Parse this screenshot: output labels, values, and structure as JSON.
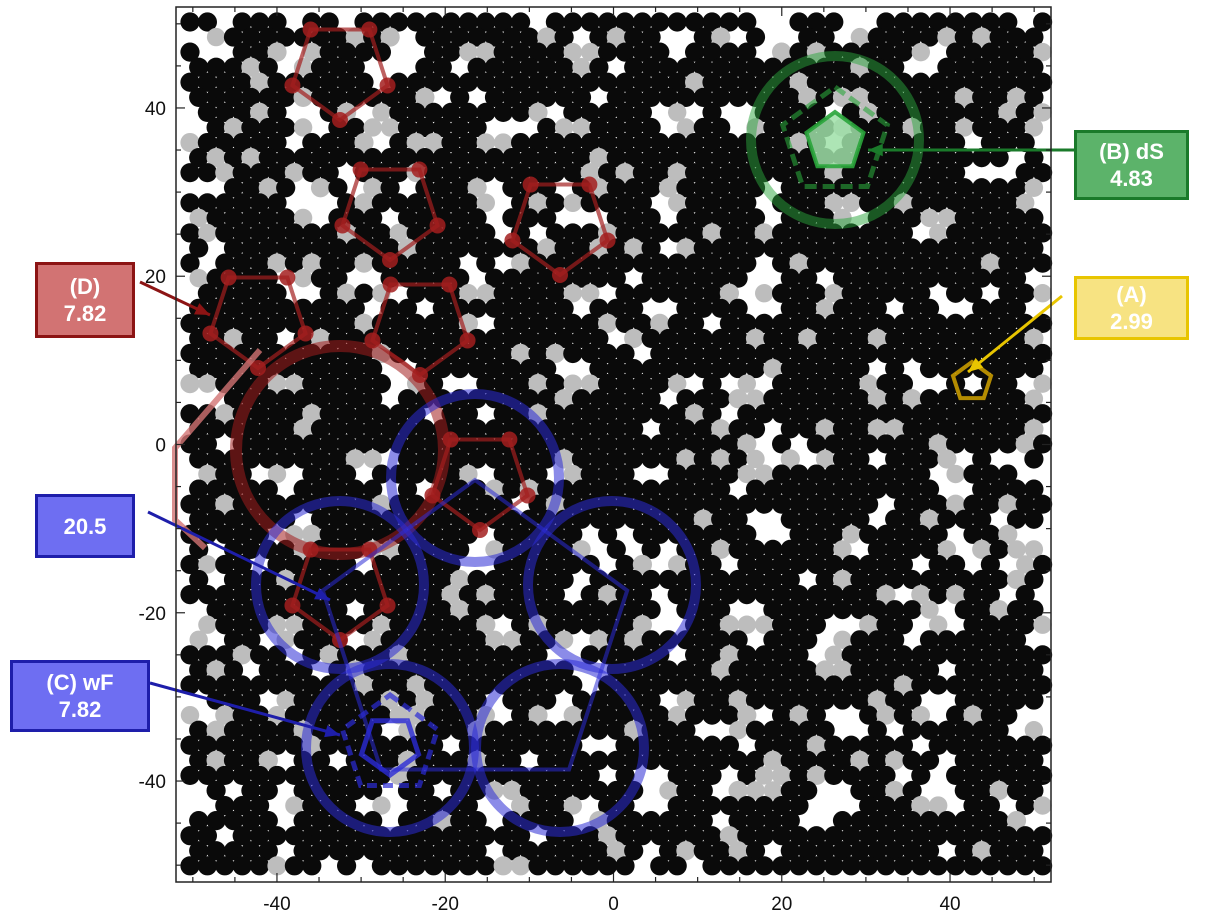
{
  "figure": {
    "x_ticks": [
      "-40",
      "-20",
      "0",
      "20",
      "40"
    ],
    "y_ticks": [
      "40",
      "20",
      "0",
      "-20",
      "-40"
    ],
    "x_range": [
      -52,
      52
    ],
    "y_range": [
      -52,
      52
    ],
    "atom_colors": {
      "dark": "#0a0a0a",
      "light": "#bdbdbd"
    }
  },
  "annotations": {
    "b": {
      "line1": "(B) dS",
      "line2": "4.83",
      "color": "#2aa53b"
    },
    "a": {
      "line1": "(A)",
      "line2": "2.99",
      "color": "#e8c500"
    },
    "d": {
      "line1": "(D)",
      "line2": "7.82",
      "color": "#a31e1e"
    },
    "scale20": {
      "line1": "20.5",
      "color": "#2b2bd6"
    },
    "c": {
      "line1": "(C) wF",
      "line2": "7.82",
      "color": "#2b2bd6"
    }
  }
}
